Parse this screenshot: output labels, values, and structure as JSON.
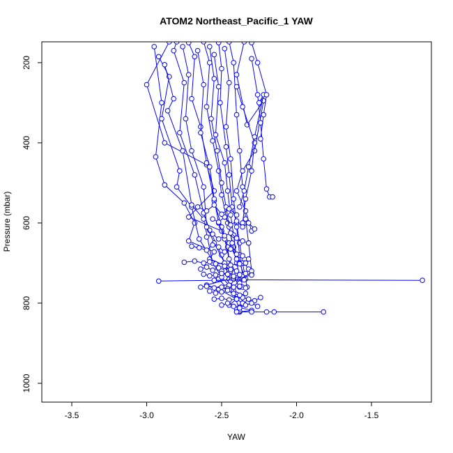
{
  "chart_data": {
    "type": "scatter",
    "title": "ATOM2 Northeast_Pacific_1 YAW",
    "xlabel": "YAW",
    "ylabel": "Pressure (mbar)",
    "xlim": [
      -3.7,
      -1.1
    ],
    "ylim": [
      1047,
      148
    ],
    "y_inverted": true,
    "x_ticks": [
      -3.5,
      -3.0,
      -2.5,
      -2.0,
      -1.5
    ],
    "x_tick_labels": [
      "-3.5",
      "-3.0",
      "-2.5",
      "-2.0",
      "-1.5"
    ],
    "y_ticks": [
      200,
      400,
      600,
      800,
      1000
    ],
    "y_tick_labels": [
      "200",
      "400",
      "600",
      "800",
      "1000"
    ],
    "marker": "open-circle",
    "color": "#0000ff",
    "series": [
      {
        "x": [
          -2.85,
          -3.0,
          -2.88,
          -2.6,
          -2.55,
          -2.72,
          -2.5,
          -2.45,
          -2.4,
          -2.35,
          -2.32,
          -2.3,
          -2.38,
          -2.42,
          -2.4,
          -2.35,
          -2.36,
          -2.4,
          -2.38
        ],
        "y": [
          148,
          255,
          400,
          455,
          520,
          585,
          620,
          650,
          690,
          700,
          715,
          728,
          742,
          760,
          778,
          792,
          800,
          815,
          822
        ]
      },
      {
        "x": [
          -2.95,
          -2.9,
          -2.94,
          -2.88,
          -2.75,
          -2.68,
          -2.72,
          -2.55,
          -2.58,
          -2.45,
          -2.48,
          -2.52,
          -2.47,
          -2.4,
          -2.45,
          -2.3,
          -2.38,
          -2.4
        ],
        "y": [
          160,
          300,
          435,
          505,
          550,
          600,
          645,
          672,
          690,
          710,
          720,
          740,
          760,
          790,
          805,
          818,
          822,
          822
        ]
      },
      {
        "x": [
          -2.92,
          -2.85,
          -2.9,
          -2.78,
          -2.8,
          -2.7,
          -2.65,
          -2.55,
          -2.5,
          -2.45,
          -2.6,
          -2.52,
          -2.4,
          -2.36,
          -2.38
        ],
        "y": [
          185,
          235,
          340,
          470,
          510,
          560,
          640,
          700,
          720,
          740,
          755,
          765,
          790,
          800,
          810
        ]
      },
      {
        "x": [
          -2.88,
          -2.82,
          -2.86,
          -2.76,
          -2.7,
          -2.62,
          -2.56,
          -2.5,
          -2.45,
          -2.42,
          -2.38
        ],
        "y": [
          205,
          290,
          320,
          420,
          555,
          590,
          700,
          735,
          755,
          770,
          820
        ]
      },
      {
        "x": [
          -2.8,
          -2.82,
          -2.75,
          -2.78,
          -2.68,
          -2.62,
          -2.58,
          -2.5,
          -2.44,
          -2.4
        ],
        "y": [
          148,
          170,
          250,
          375,
          480,
          575,
          618,
          680,
          745,
          790
        ]
      },
      {
        "x": [
          -2.76,
          -2.72,
          -2.74,
          -2.7,
          -2.62,
          -2.6,
          -2.55,
          -2.48,
          -2.42
        ],
        "y": [
          160,
          230,
          340,
          420,
          510,
          610,
          650,
          700,
          740
        ]
      },
      {
        "x": [
          -2.72,
          -2.68,
          -2.7,
          -2.64,
          -2.6,
          -2.55,
          -2.5,
          -2.46,
          -2.44,
          -2.38
        ],
        "y": [
          150,
          185,
          290,
          360,
          450,
          545,
          610,
          660,
          720,
          760
        ]
      },
      {
        "x": [
          -2.66,
          -2.62,
          -2.64,
          -2.58,
          -2.55,
          -2.52,
          -2.48,
          -2.45,
          -2.4
        ],
        "y": [
          170,
          255,
          375,
          460,
          540,
          600,
          640,
          690,
          730
        ]
      },
      {
        "x": [
          -2.62,
          -2.58,
          -2.6,
          -2.56,
          -2.52,
          -2.5,
          -2.46,
          -2.42,
          -2.38,
          -2.34
        ],
        "y": [
          148,
          200,
          310,
          395,
          470,
          530,
          600,
          660,
          700,
          740
        ]
      },
      {
        "x": [
          -2.58,
          -2.55,
          -2.57,
          -2.53,
          -2.5,
          -2.47,
          -2.45,
          -2.43,
          -2.4,
          -2.36
        ],
        "y": [
          160,
          240,
          340,
          420,
          500,
          560,
          610,
          650,
          700,
          760
        ]
      },
      {
        "x": [
          -2.55,
          -2.52,
          -2.54,
          -2.48,
          -2.46,
          -2.44,
          -2.42,
          -2.4,
          -2.38
        ],
        "y": [
          180,
          260,
          380,
          450,
          520,
          580,
          630,
          690,
          750
        ]
      },
      {
        "x": [
          -2.52,
          -2.5,
          -2.51,
          -2.47,
          -2.45,
          -2.43,
          -2.4,
          -2.38,
          -2.36,
          -2.33
        ],
        "y": [
          150,
          215,
          300,
          410,
          480,
          560,
          600,
          650,
          700,
          760
        ]
      },
      {
        "x": [
          -2.48,
          -2.45,
          -2.47,
          -2.44,
          -2.42,
          -2.4,
          -2.38,
          -2.36
        ],
        "y": [
          165,
          250,
          360,
          440,
          540,
          610,
          680,
          730
        ]
      },
      {
        "x": [
          -2.45,
          -2.42,
          -2.4,
          -2.38,
          -2.36,
          -2.34,
          -2.32,
          -2.3
        ],
        "y": [
          148,
          200,
          330,
          420,
          510,
          590,
          650,
          720
        ]
      },
      {
        "x": [
          -2.35,
          -2.4,
          -2.33,
          -2.22,
          -2.28,
          -2.36,
          -2.4,
          -2.34,
          -2.3
        ],
        "y": [
          148,
          230,
          355,
          295,
          420,
          470,
          520,
          570,
          620
        ]
      },
      {
        "x": [
          -2.3,
          -2.26,
          -2.24,
          -2.22,
          -2.2,
          -2.18,
          -2.16
        ],
        "y": [
          190,
          280,
          350,
          440,
          515,
          535,
          535
        ]
      },
      {
        "x": [
          -2.4,
          -2.36,
          -2.28,
          -2.3,
          -2.34,
          -2.36
        ],
        "y": [
          260,
          310,
          400,
          470,
          540,
          600
        ]
      },
      {
        "x": [
          -2.25,
          -2.22,
          -2.28,
          -2.32,
          -2.35,
          -2.38
        ],
        "y": [
          300,
          280,
          385,
          460,
          520,
          560
        ]
      },
      {
        "x": [
          -2.3,
          -2.26,
          -2.2,
          -2.22,
          -2.24
        ],
        "y": [
          150,
          200,
          280,
          330,
          390
        ]
      },
      {
        "x": [
          -2.92,
          -2.55,
          -2.35,
          -1.16
        ],
        "y": [
          745,
          743,
          742,
          743
        ]
      },
      {
        "x": [
          -2.4,
          -2.3,
          -2.2,
          -2.15,
          -1.82
        ],
        "y": [
          822,
          822,
          822,
          822,
          822
        ]
      },
      {
        "x": [
          -2.75,
          -2.68,
          -2.62,
          -2.58,
          -2.54,
          -2.48,
          -2.44,
          -2.38,
          -2.34
        ],
        "y": [
          698,
          695,
          700,
          697,
          702,
          700,
          705,
          702,
          700
        ]
      },
      {
        "x": [
          -2.62,
          -2.58,
          -2.54,
          -2.5,
          -2.46,
          -2.42,
          -2.38,
          -2.34,
          -2.3
        ],
        "y": [
          728,
          732,
          730,
          726,
          728,
          733,
          729,
          726,
          730
        ]
      },
      {
        "x": [
          -2.64,
          -2.6,
          -2.55,
          -2.5,
          -2.46,
          -2.42,
          -2.38,
          -2.34
        ],
        "y": [
          760,
          758,
          762,
          760,
          764,
          760,
          758,
          762
        ]
      },
      {
        "x": [
          -2.55,
          -2.5,
          -2.45,
          -2.4,
          -2.36,
          -2.32,
          -2.28,
          -2.24
        ],
        "y": [
          790,
          788,
          792,
          790,
          786,
          790,
          794,
          786
        ]
      },
      {
        "x": [
          -2.7,
          -2.65,
          -2.6,
          -2.56,
          -2.52,
          -2.48,
          -2.44,
          -2.4,
          -2.36,
          -2.32
        ],
        "y": [
          658,
          662,
          668,
          655,
          660,
          672,
          665,
          678,
          682,
          690
        ]
      },
      {
        "x": [
          -2.6,
          -2.56,
          -2.52,
          -2.48,
          -2.44,
          -2.4,
          -2.36,
          -2.32
        ],
        "y": [
          635,
          628,
          640,
          632,
          625,
          638,
          645,
          650
        ]
      },
      {
        "x": [
          -2.58,
          -2.54,
          -2.5,
          -2.46,
          -2.42,
          -2.38,
          -2.34
        ],
        "y": [
          770,
          775,
          772,
          768,
          776,
          780,
          776
        ]
      },
      {
        "x": [
          -2.5,
          -2.46,
          -2.42,
          -2.38,
          -2.34,
          -2.3,
          -2.26
        ],
        "y": [
          805,
          800,
          808,
          812,
          805,
          800,
          808
        ]
      },
      {
        "x": [
          -2.64,
          -2.6,
          -2.56,
          -2.52,
          -2.48,
          -2.44,
          -2.4
        ],
        "y": [
          715,
          710,
          718,
          712,
          708,
          716,
          720
        ]
      },
      {
        "x": [
          -2.56,
          -2.52,
          -2.48,
          -2.44,
          -2.4,
          -2.36,
          -2.32,
          -2.28
        ],
        "y": [
          590,
          598,
          585,
          605,
          595,
          610,
          600,
          615
        ]
      },
      {
        "x": [
          -2.66,
          -2.6,
          -2.55,
          -2.5,
          -2.45,
          -2.4
        ],
        "y": [
          560,
          570,
          555,
          578,
          565,
          580
        ]
      }
    ]
  }
}
